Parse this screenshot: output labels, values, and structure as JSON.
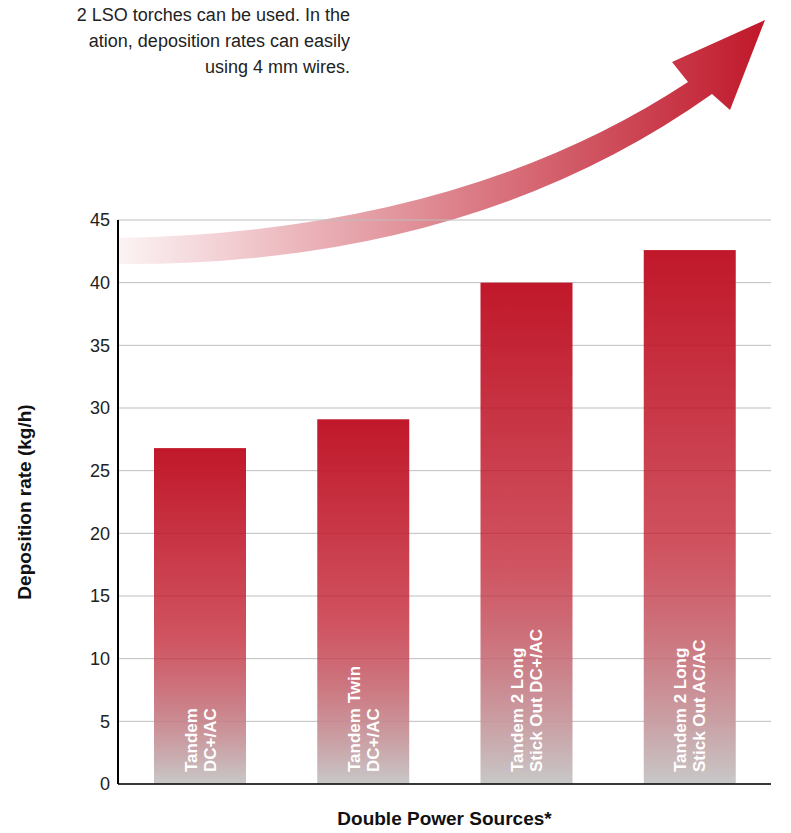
{
  "chart_data": {
    "type": "bar",
    "annotations": [
      "2 LSO torches can be used. In the",
      "ation, deposition rates can easily",
      "using 4 mm wires."
    ],
    "x_label": "Double Power Sources*",
    "y_label": "Deposition rate (kg/h)",
    "categories": [
      "Tandem DC+/AC",
      "Tandem Twin DC+/AC",
      "Tandem 2 Long Stick Out DC+/AC",
      "Tandem 2 Long Stick Out AC/AC"
    ],
    "values": [
      26.8,
      29.1,
      40.0,
      42.6
    ],
    "color": "#c0182a",
    "ylim": [
      0,
      45
    ],
    "yticks": [
      0,
      5,
      10,
      15,
      20,
      25,
      30,
      35,
      40,
      45
    ],
    "grid": true,
    "tick_labels": "y"
  }
}
